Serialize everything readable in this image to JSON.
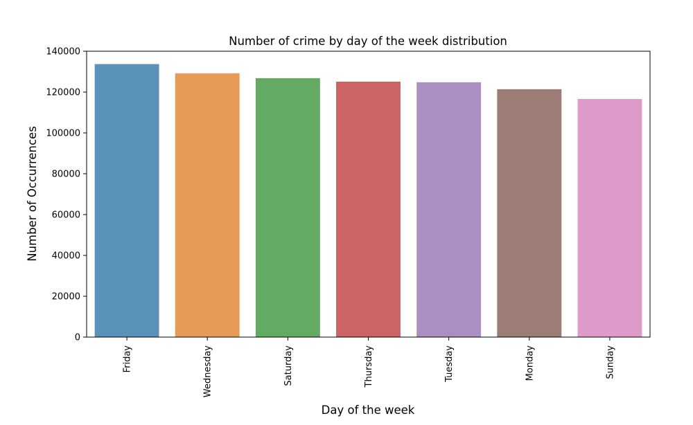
{
  "chart_data": {
    "type": "bar",
    "title": "Number of crime by day of the week distribution",
    "xlabel": "Day of the week",
    "ylabel": "Number of Occurrences",
    "categories": [
      "Friday",
      "Wednesday",
      "Saturday",
      "Thursday",
      "Tuesday",
      "Monday",
      "Sunday"
    ],
    "values": [
      133700,
      129200,
      126800,
      125100,
      124800,
      121400,
      116600
    ],
    "colors": [
      "#5b92b7",
      "#e79b58",
      "#63aa62",
      "#cb6565",
      "#a990c2",
      "#9c7c74",
      "#de9bca"
    ],
    "ylim": [
      0,
      140000
    ],
    "yticks": [
      "0",
      "20000",
      "40000",
      "60000",
      "80000",
      "100000",
      "120000",
      "140000"
    ],
    "grid": false,
    "legend": "none"
  }
}
